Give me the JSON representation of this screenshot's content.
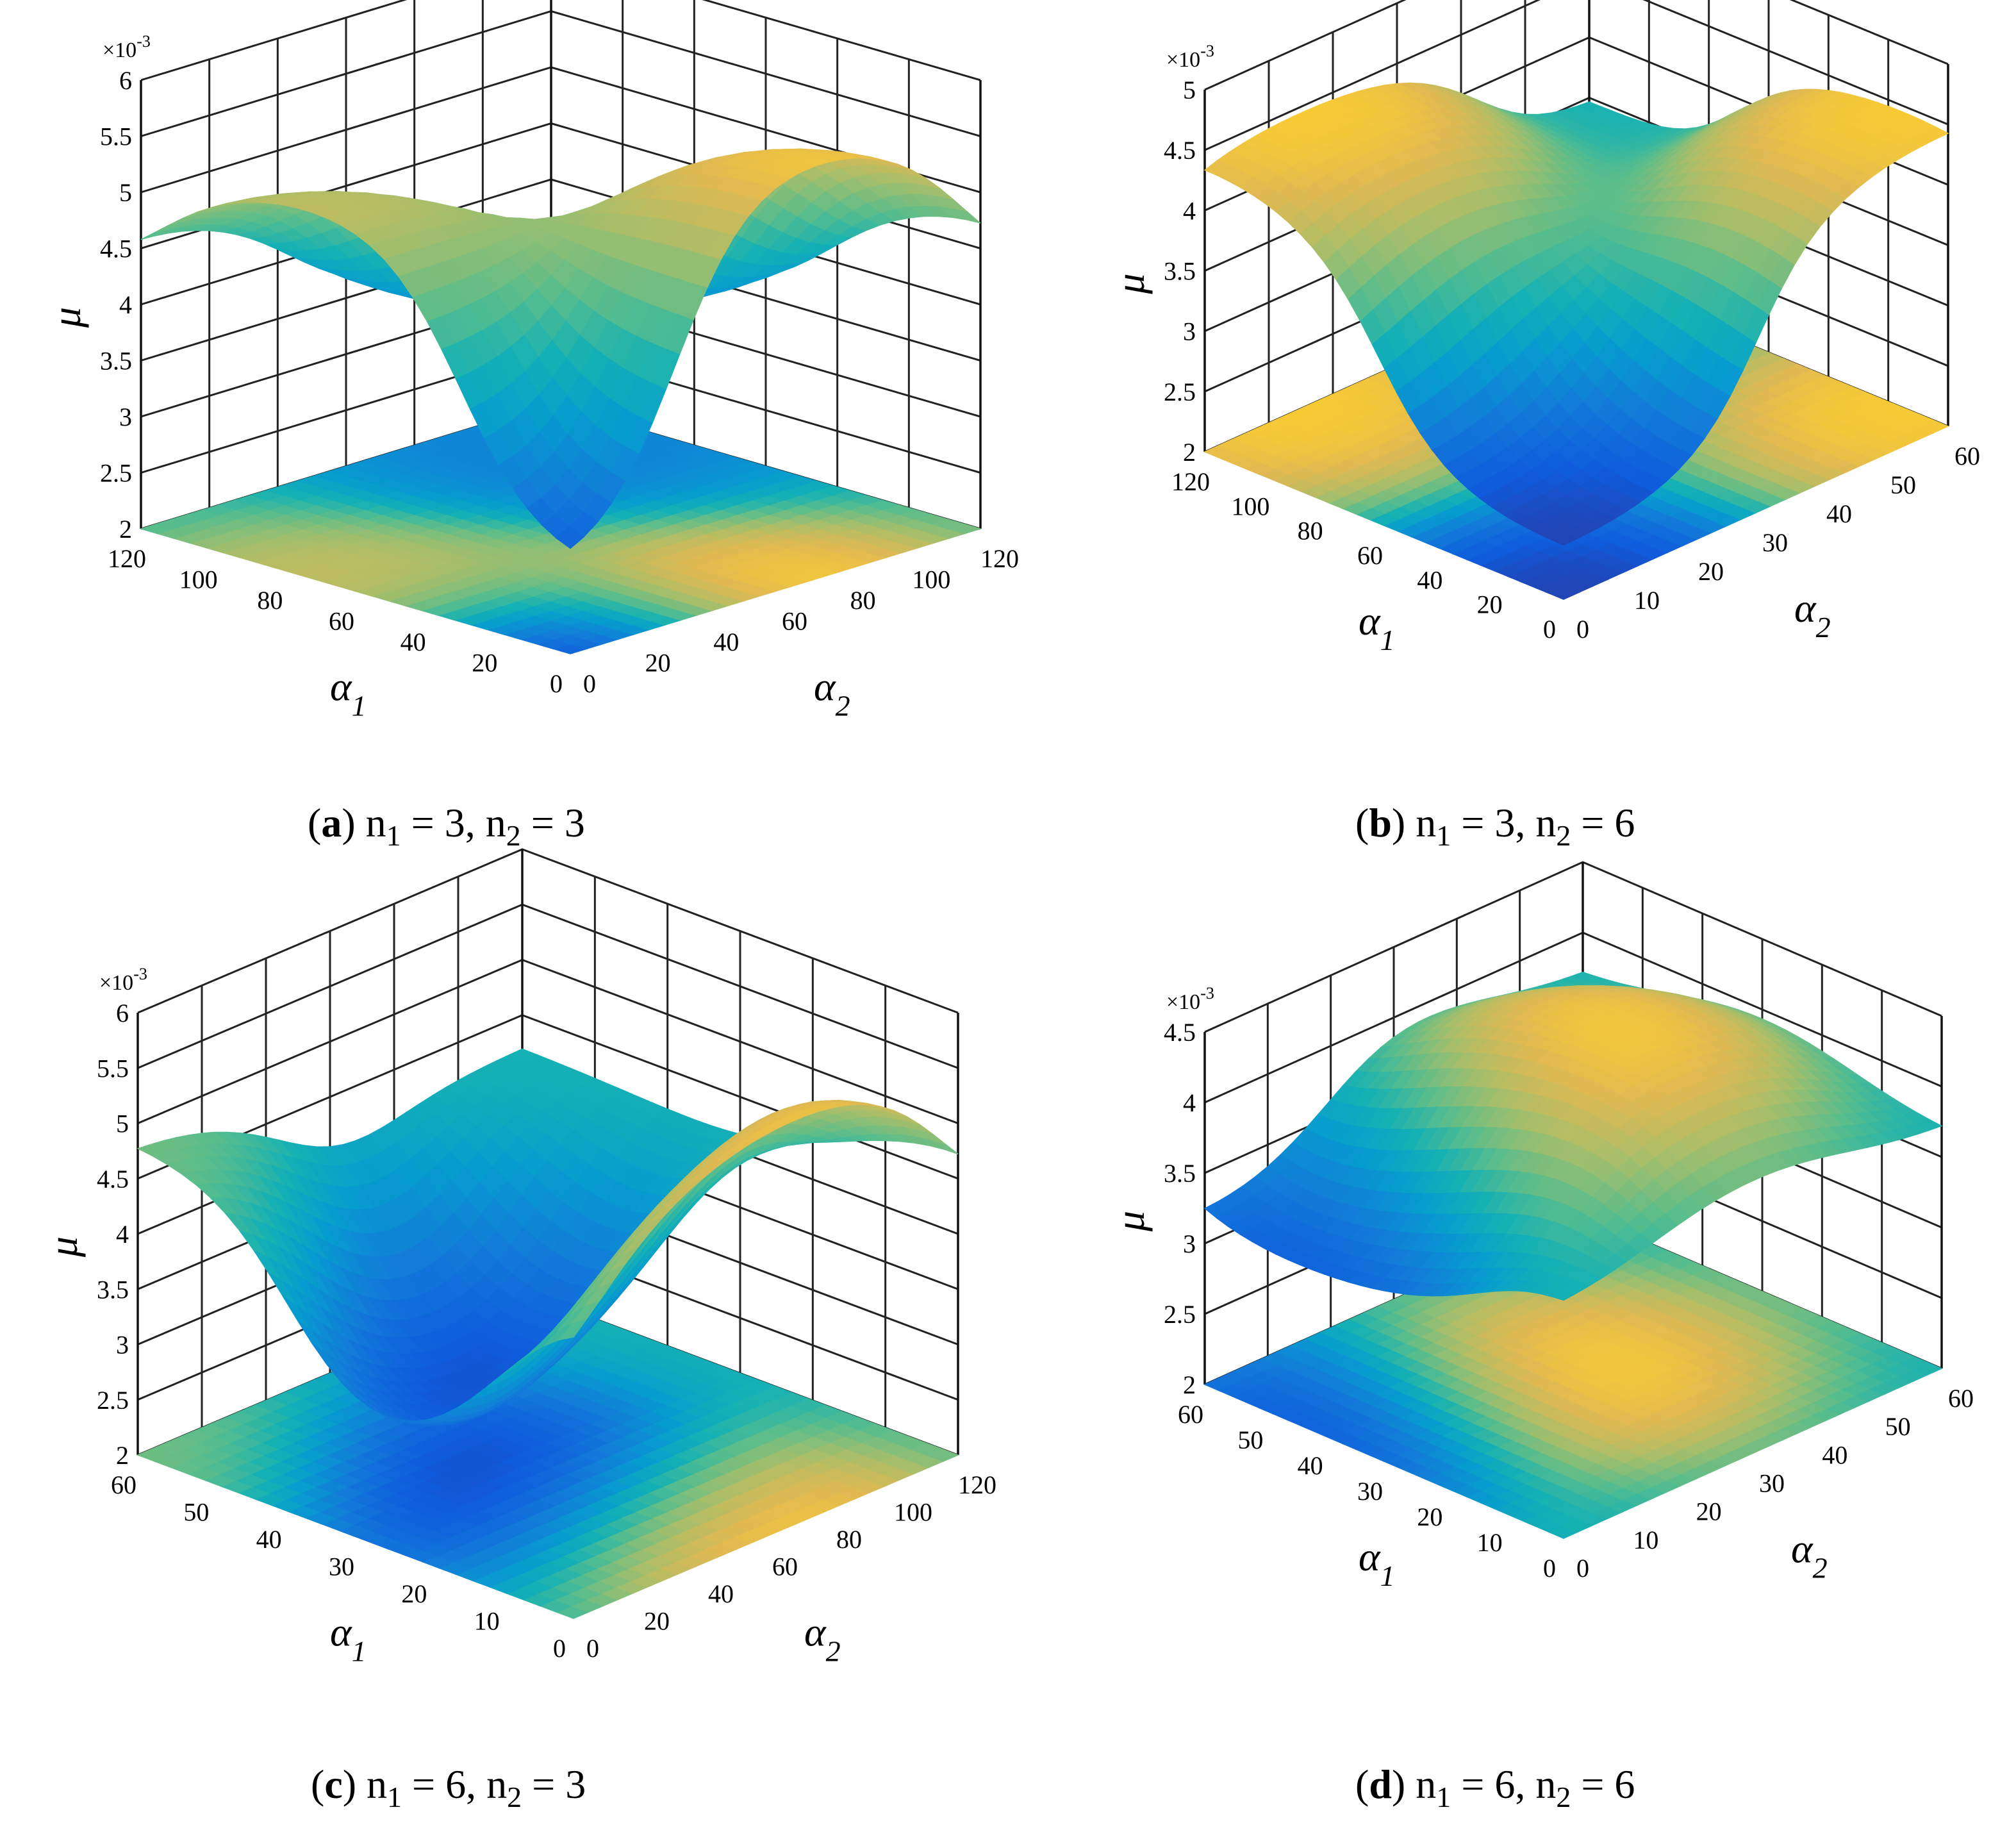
{
  "chart_data": [
    {
      "type": "surface3d",
      "panel_label": "a",
      "caption": {
        "n1": "3",
        "n2": "3"
      },
      "x_axis": {
        "symbol": "α",
        "subscript": "1",
        "ticks": [
          0,
          20,
          40,
          60,
          80,
          100,
          120
        ],
        "range": [
          0,
          120
        ]
      },
      "y_axis": {
        "symbol": "α",
        "subscript": "2",
        "ticks": [
          0,
          20,
          40,
          60,
          80,
          100,
          120
        ],
        "range": [
          0,
          120
        ]
      },
      "z_axis": {
        "symbol": "μ",
        "multiplier": "×10-3",
        "ticks": [
          2,
          2.5,
          3,
          3.5,
          4,
          4.5,
          5,
          5.5,
          6
        ],
        "range": [
          2,
          6
        ]
      },
      "grid": true,
      "colormap": "parula",
      "surface": {
        "zmin": 2.4,
        "zmax": 6.0,
        "peaks": [
          {
            "a1": 60,
            "a2": 0,
            "mu": 5.5
          },
          {
            "a1": 0,
            "a2": 60,
            "mu": 6.0
          }
        ],
        "minima": [
          {
            "a1": 0,
            "a2": 0,
            "mu": 2.4
          },
          {
            "a1": 100,
            "a2": 100,
            "mu": 3.3
          }
        ]
      }
    },
    {
      "type": "surface3d",
      "panel_label": "b",
      "caption": {
        "n1": "3",
        "n2": "6"
      },
      "x_axis": {
        "symbol": "α",
        "subscript": "1",
        "ticks": [
          0,
          20,
          40,
          60,
          80,
          100,
          120
        ],
        "range": [
          0,
          120
        ]
      },
      "y_axis": {
        "symbol": "α",
        "subscript": "2",
        "ticks": [
          0,
          10,
          20,
          30,
          40,
          50,
          60
        ],
        "range": [
          0,
          60
        ]
      },
      "z_axis": {
        "symbol": "μ",
        "multiplier": "×10-3",
        "ticks": [
          2,
          2.5,
          3,
          3.5,
          4,
          4.5,
          5
        ],
        "range": [
          2,
          5
        ]
      },
      "grid": true,
      "colormap": "parula",
      "surface": {
        "zmin": 2.3,
        "zmax": 4.6,
        "peaks": [
          {
            "a1": 120,
            "a2": 15,
            "mu": 4.6
          },
          {
            "a1": 15,
            "a2": 60,
            "mu": 4.6
          }
        ],
        "minima": [
          {
            "a1": 0,
            "a2": 0,
            "mu": 2.3
          }
        ]
      }
    },
    {
      "type": "surface3d",
      "panel_label": "c",
      "caption": {
        "n1": "6",
        "n2": "3"
      },
      "x_axis": {
        "symbol": "α",
        "subscript": "1",
        "ticks": [
          0,
          10,
          20,
          30,
          40,
          50,
          60
        ],
        "range": [
          0,
          60
        ]
      },
      "y_axis": {
        "symbol": "α",
        "subscript": "2",
        "ticks": [
          0,
          20,
          40,
          60,
          80,
          100,
          120
        ],
        "range": [
          0,
          120
        ]
      },
      "z_axis": {
        "symbol": "μ",
        "multiplier": "×10-3",
        "ticks": [
          2,
          2.5,
          3,
          3.5,
          4,
          4.5,
          5,
          5.5,
          6
        ],
        "range": [
          2,
          6
        ]
      },
      "grid": true,
      "colormap": "parula",
      "surface": {
        "zmin": 2.4,
        "zmax": 6.0,
        "peaks": [
          {
            "a1": 0,
            "a2": 60,
            "mu": 6.0
          },
          {
            "a1": 60,
            "a2": 0,
            "mu": 4.9
          }
        ],
        "minima": [
          {
            "a1": 30,
            "a2": 40,
            "mu": 2.4
          }
        ]
      }
    },
    {
      "type": "surface3d",
      "panel_label": "d",
      "caption": {
        "n1": "6",
        "n2": "6"
      },
      "x_axis": {
        "symbol": "α",
        "subscript": "1",
        "ticks": [
          0,
          10,
          20,
          30,
          40,
          50,
          60
        ],
        "range": [
          0,
          60
        ]
      },
      "y_axis": {
        "symbol": "α",
        "subscript": "2",
        "ticks": [
          0,
          10,
          20,
          30,
          40,
          50,
          60
        ],
        "range": [
          0,
          60
        ]
      },
      "z_axis": {
        "symbol": "μ",
        "multiplier": "×10-3",
        "ticks": [
          2,
          2.5,
          3,
          3.5,
          4,
          4.5
        ],
        "range": [
          2,
          4.5
        ]
      },
      "grid": true,
      "colormap": "parula",
      "surface": {
        "zmin": 2.9,
        "zmax": 4.5,
        "peaks": [
          {
            "a1": 30,
            "a2": 30,
            "mu": 4.5
          }
        ],
        "minima": [
          {
            "a1": 40,
            "a2": 0,
            "mu": 3.0
          }
        ]
      }
    }
  ]
}
